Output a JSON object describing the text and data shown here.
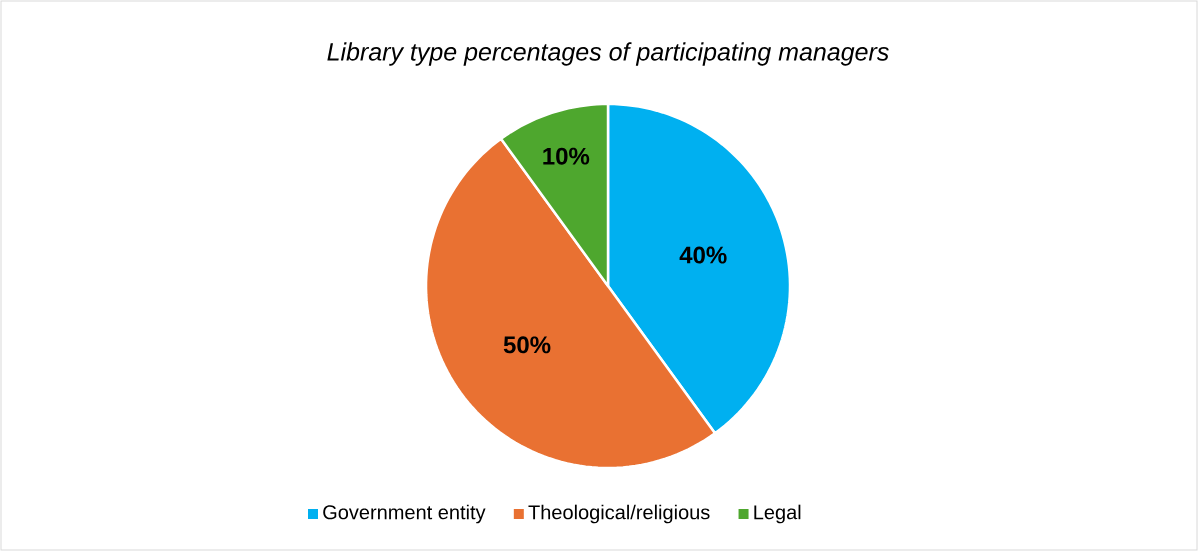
{
  "chart_data": {
    "type": "pie",
    "title": "Library type percentages of participating managers",
    "categories": [
      "Government entity",
      "Theological/religious",
      "Legal"
    ],
    "values": [
      40,
      50,
      10
    ],
    "colors": [
      "#00b0f0",
      "#e97132",
      "#4ea72e"
    ],
    "value_labels": [
      "40%",
      "50%",
      "10%"
    ],
    "legend": "bottom"
  }
}
